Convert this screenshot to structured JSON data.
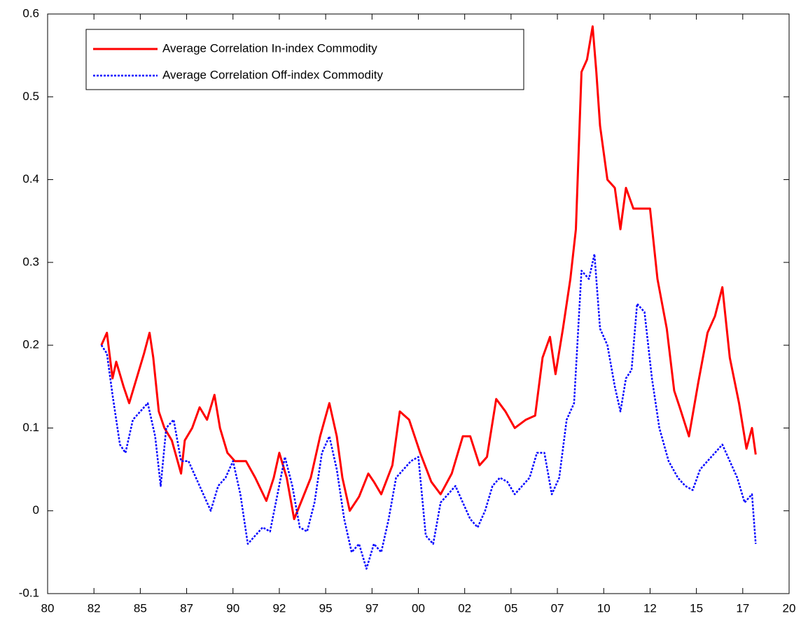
{
  "chart_data": {
    "type": "line",
    "xlim": [
      1980,
      2020
    ],
    "xticks": [
      {
        "value": 1980,
        "label": "80"
      },
      {
        "value": 1982.5,
        "label": "82"
      },
      {
        "value": 1985,
        "label": "85"
      },
      {
        "value": 1987.5,
        "label": "87"
      },
      {
        "value": 1990,
        "label": "90"
      },
      {
        "value": 1992.5,
        "label": "92"
      },
      {
        "value": 1995,
        "label": "95"
      },
      {
        "value": 1997.5,
        "label": "97"
      },
      {
        "value": 2000,
        "label": "00"
      },
      {
        "value": 2002.5,
        "label": "02"
      },
      {
        "value": 2005,
        "label": "05"
      },
      {
        "value": 2007.5,
        "label": "07"
      },
      {
        "value": 2010,
        "label": "10"
      },
      {
        "value": 2012.5,
        "label": "12"
      },
      {
        "value": 2015,
        "label": "15"
      },
      {
        "value": 2017.5,
        "label": "17"
      },
      {
        "value": 2020,
        "label": "20"
      }
    ],
    "ylim": [
      -0.1,
      0.6
    ],
    "yticks": [
      -0.1,
      0,
      0.1,
      0.2,
      0.3,
      0.4,
      0.5,
      0.6
    ],
    "legend": "upper left",
    "series": [
      {
        "name": "Average Correlation In-index Commodity",
        "color": "#ff0000",
        "style": "solid",
        "x": [
          1982.9,
          1983.2,
          1983.5,
          1983.7,
          1984.1,
          1984.4,
          1984.8,
          1985.2,
          1985.5,
          1985.7,
          1986.0,
          1986.3,
          1986.7,
          1987.2,
          1987.4,
          1987.8,
          1988.2,
          1988.6,
          1989.0,
          1989.3,
          1989.7,
          1990.1,
          1990.7,
          1991.2,
          1991.8,
          1992.2,
          1992.5,
          1992.9,
          1993.3,
          1993.7,
          1994.2,
          1994.7,
          1995.2,
          1995.6,
          1995.9,
          1996.3,
          1996.8,
          1997.3,
          1997.6,
          1998.0,
          1998.6,
          1999.0,
          1999.5,
          2000.1,
          2000.7,
          2001.2,
          2001.8,
          2002.4,
          2002.8,
          2003.3,
          2003.7,
          2004.2,
          2004.7,
          2005.2,
          2005.8,
          2006.3,
          2006.7,
          2007.1,
          2007.4,
          2007.8,
          2008.2,
          2008.5,
          2008.8,
          2009.1,
          2009.4,
          2009.6,
          2009.8,
          2010.2,
          2010.6,
          2010.9,
          2011.2,
          2011.6,
          2011.9,
          2012.5,
          2012.9,
          2013.4,
          2013.8,
          2014.1,
          2014.6,
          2015.1,
          2015.6,
          2016.0,
          2016.4,
          2016.8,
          2017.3,
          2017.7,
          2018.0,
          2018.2
        ],
        "values": [
          0.2,
          0.215,
          0.16,
          0.18,
          0.15,
          0.13,
          0.16,
          0.19,
          0.215,
          0.185,
          0.12,
          0.1,
          0.085,
          0.045,
          0.085,
          0.1,
          0.125,
          0.11,
          0.14,
          0.1,
          0.07,
          0.06,
          0.06,
          0.04,
          0.012,
          0.04,
          0.07,
          0.04,
          -0.01,
          0.012,
          0.04,
          0.09,
          0.13,
          0.09,
          0.04,
          0.0,
          0.017,
          0.045,
          0.035,
          0.02,
          0.055,
          0.12,
          0.11,
          0.07,
          0.035,
          0.02,
          0.045,
          0.09,
          0.09,
          0.055,
          0.065,
          0.135,
          0.12,
          0.1,
          0.11,
          0.115,
          0.185,
          0.21,
          0.165,
          0.22,
          0.28,
          0.34,
          0.53,
          0.545,
          0.585,
          0.53,
          0.465,
          0.4,
          0.39,
          0.34,
          0.39,
          0.365,
          0.365,
          0.365,
          0.28,
          0.22,
          0.145,
          0.125,
          0.09,
          0.155,
          0.215,
          0.235,
          0.27,
          0.185,
          0.13,
          0.075,
          0.1,
          0.068
        ]
      },
      {
        "name": "Average Correlation Off-index Commodity",
        "color": "#0000ff",
        "style": "dotted",
        "x": [
          1982.9,
          1983.2,
          1983.5,
          1983.9,
          1984.2,
          1984.6,
          1985.0,
          1985.4,
          1985.8,
          1986.1,
          1986.4,
          1986.8,
          1987.2,
          1987.6,
          1988.0,
          1988.4,
          1988.8,
          1989.2,
          1989.6,
          1990.0,
          1990.4,
          1990.8,
          1991.2,
          1991.6,
          1992.0,
          1992.4,
          1992.8,
          1993.2,
          1993.6,
          1994.0,
          1994.4,
          1994.8,
          1995.2,
          1995.6,
          1996.0,
          1996.4,
          1996.8,
          1997.2,
          1997.6,
          1998.0,
          1998.4,
          1998.8,
          1999.2,
          1999.6,
          2000.0,
          2000.4,
          2000.8,
          2001.2,
          2001.6,
          2002.0,
          2002.4,
          2002.8,
          2003.2,
          2003.6,
          2004.0,
          2004.4,
          2004.8,
          2005.2,
          2005.6,
          2006.0,
          2006.4,
          2006.8,
          2007.2,
          2007.6,
          2008.0,
          2008.4,
          2008.8,
          2009.2,
          2009.5,
          2009.8,
          2010.2,
          2010.6,
          2010.9,
          2011.2,
          2011.5,
          2011.8,
          2012.2,
          2012.6,
          2013.0,
          2013.5,
          2014.0,
          2014.4,
          2014.8,
          2015.2,
          2015.6,
          2016.0,
          2016.4,
          2016.8,
          2017.2,
          2017.6,
          2018.0,
          2018.2
        ],
        "values": [
          0.2,
          0.19,
          0.14,
          0.08,
          0.07,
          0.11,
          0.12,
          0.13,
          0.09,
          0.03,
          0.1,
          0.11,
          0.06,
          0.06,
          0.04,
          0.02,
          0.0,
          0.03,
          0.04,
          0.06,
          0.02,
          -0.04,
          -0.03,
          -0.02,
          -0.025,
          0.02,
          0.065,
          0.03,
          -0.02,
          -0.025,
          0.01,
          0.07,
          0.09,
          0.05,
          -0.01,
          -0.05,
          -0.04,
          -0.07,
          -0.04,
          -0.05,
          -0.01,
          0.04,
          0.05,
          0.06,
          0.065,
          -0.03,
          -0.04,
          0.01,
          0.02,
          0.03,
          0.01,
          -0.01,
          -0.02,
          0.0,
          0.03,
          0.04,
          0.035,
          0.02,
          0.03,
          0.04,
          0.07,
          0.07,
          0.02,
          0.04,
          0.11,
          0.13,
          0.29,
          0.28,
          0.31,
          0.22,
          0.2,
          0.15,
          0.12,
          0.16,
          0.17,
          0.25,
          0.24,
          0.16,
          0.1,
          0.06,
          0.04,
          0.03,
          0.025,
          0.05,
          0.06,
          0.07,
          0.08,
          0.06,
          0.04,
          0.01,
          0.02,
          -0.04
        ]
      }
    ]
  }
}
